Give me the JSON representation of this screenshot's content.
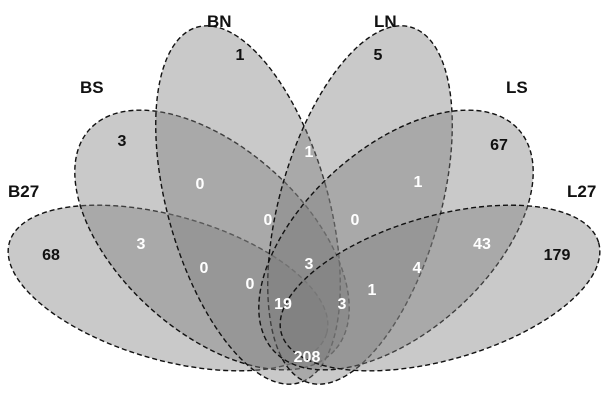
{
  "sets": [
    {
      "id": "B27",
      "label": "B27"
    },
    {
      "id": "BS",
      "label": "BS"
    },
    {
      "id": "BN",
      "label": "BN"
    },
    {
      "id": "LN",
      "label": "LN"
    },
    {
      "id": "LS",
      "label": "LS"
    },
    {
      "id": "L27",
      "label": "L27"
    }
  ],
  "regions": [
    {
      "id": "only-b27",
      "sets": [
        "B27"
      ],
      "value": "68"
    },
    {
      "id": "only-bs",
      "sets": [
        "BS"
      ],
      "value": "3"
    },
    {
      "id": "only-bn",
      "sets": [
        "BN"
      ],
      "value": "1"
    },
    {
      "id": "only-ln",
      "sets": [
        "LN"
      ],
      "value": "5"
    },
    {
      "id": "only-ls",
      "sets": [
        "LS"
      ],
      "value": "67"
    },
    {
      "id": "only-l27",
      "sets": [
        "L27"
      ],
      "value": "179"
    },
    {
      "id": "b27-bs",
      "sets": [
        "B27",
        "BS"
      ],
      "value": "3"
    },
    {
      "id": "bs-bn",
      "sets": [
        "BS",
        "BN"
      ],
      "value": "0"
    },
    {
      "id": "bn-ln",
      "sets": [
        "BN",
        "LN"
      ],
      "value": "1"
    },
    {
      "id": "ln-ls",
      "sets": [
        "LN",
        "LS"
      ],
      "value": "1"
    },
    {
      "id": "ls-l27",
      "sets": [
        "LS",
        "L27"
      ],
      "value": "43"
    },
    {
      "id": "b27-bs-bn",
      "sets": [
        "B27",
        "BS",
        "BN"
      ],
      "value": "0"
    },
    {
      "id": "bs-bn-ln",
      "sets": [
        "BS",
        "BN",
        "LN"
      ],
      "value": "0"
    },
    {
      "id": "bn-ln-ls",
      "sets": [
        "BN",
        "LN",
        "LS"
      ],
      "value": "0"
    },
    {
      "id": "ln-ls-l27",
      "sets": [
        "LN",
        "LS",
        "L27"
      ],
      "value": "4"
    },
    {
      "id": "b27-bs-bn-ln",
      "sets": [
        "B27",
        "BS",
        "BN",
        "LN"
      ],
      "value": "0"
    },
    {
      "id": "core-upper",
      "sets": [
        "BS",
        "BN",
        "LN",
        "LS"
      ],
      "value": "3"
    },
    {
      "id": "ln-ls-l27-bn",
      "sets": [
        "BN",
        "LN",
        "LS",
        "L27"
      ],
      "value": "1"
    },
    {
      "id": "five-b",
      "sets": [
        "B27",
        "BS",
        "BN",
        "LN",
        "LS"
      ],
      "value": "19"
    },
    {
      "id": "five-l",
      "sets": [
        "BS",
        "BN",
        "LN",
        "LS",
        "L27"
      ],
      "value": "3"
    },
    {
      "id": "all-six",
      "sets": [
        "B27",
        "BS",
        "BN",
        "LN",
        "LS",
        "L27"
      ],
      "value": "208"
    }
  ],
  "colors": {
    "petal_fill": "#7f7f7f",
    "outline": "#111111"
  }
}
